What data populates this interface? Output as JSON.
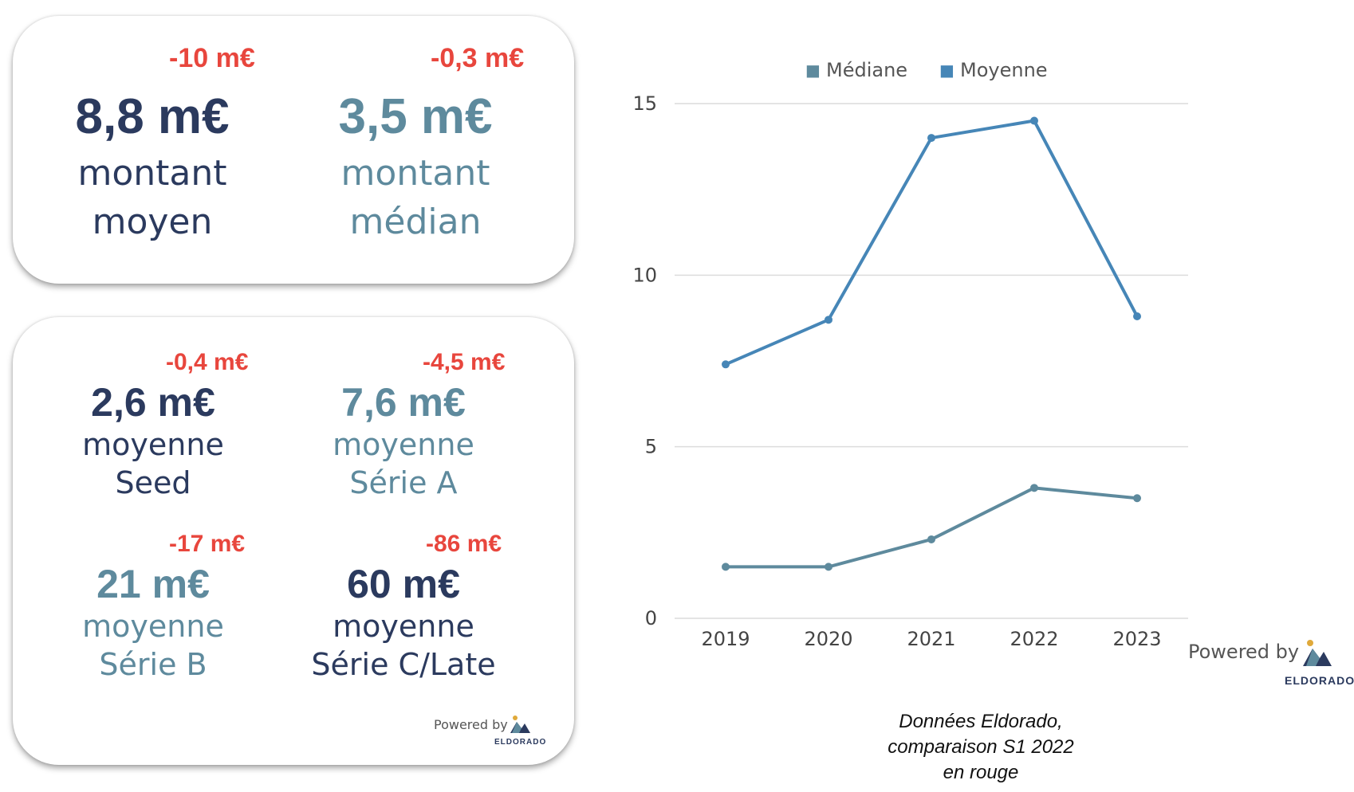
{
  "cards": {
    "top": {
      "left": {
        "delta": "-10 m€",
        "value": "8,8 m€",
        "label1": "montant",
        "label2": "moyen"
      },
      "right": {
        "delta": "-0,3 m€",
        "value": "3,5 m€",
        "label1": "montant",
        "label2": "médian"
      }
    },
    "bottom": {
      "tl": {
        "delta": "-0,4 m€",
        "value": "2,6 m€",
        "label1": "moyenne",
        "label2": "Seed"
      },
      "tr": {
        "delta": "-4,5 m€",
        "value": "7,6 m€",
        "label1": "moyenne",
        "label2": "Série A"
      },
      "bl": {
        "delta": "-17 m€",
        "value": "21 m€",
        "label1": "moyenne",
        "label2": "Série B"
      },
      "br": {
        "delta": "-86 m€",
        "value": "60 m€",
        "label1": "moyenne",
        "label2": "Série C/Late"
      },
      "powered_by": "Powered by",
      "logo_text": "ELDORADO"
    }
  },
  "chart_powered_by": "Powered by",
  "chart_logo_text": "ELDORADO",
  "caption": {
    "line1": "Données Eldorado,",
    "line2": "comparaison S1 2022",
    "line3": "en rouge"
  },
  "chart_data": {
    "type": "line",
    "x": [
      "2019",
      "2020",
      "2021",
      "2022",
      "2023"
    ],
    "series": [
      {
        "name": "Médiane",
        "values": [
          1.5,
          1.5,
          2.3,
          3.8,
          3.5
        ],
        "color": "#5e8a9d"
      },
      {
        "name": "Moyenne",
        "values": [
          7.4,
          8.7,
          14.0,
          14.5,
          8.8
        ],
        "color": "#4686b7"
      }
    ],
    "ylim": [
      0,
      15
    ],
    "yticks": [
      "0",
      "5",
      "10",
      "15"
    ],
    "grid": true,
    "legend_position": "top",
    "legend_marker": "■"
  }
}
